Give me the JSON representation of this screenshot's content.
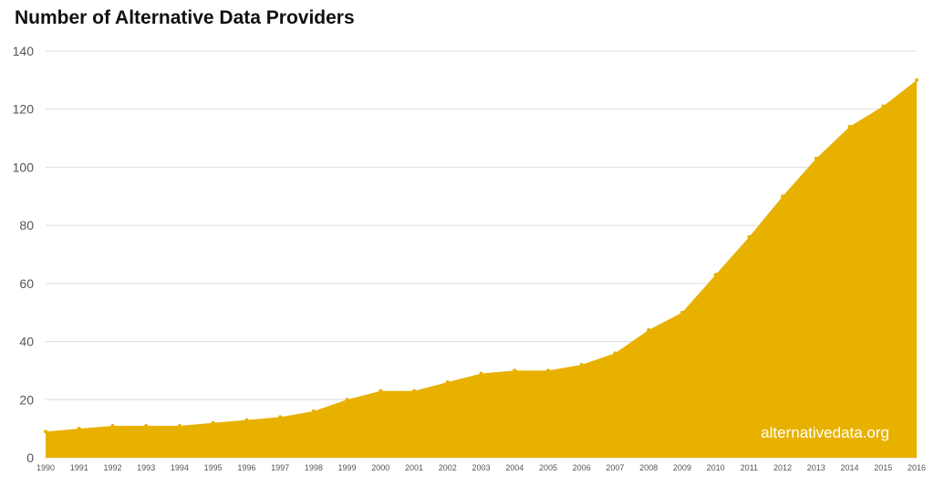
{
  "chart_data": {
    "type": "area",
    "title": "Number of Alternative Data Providers",
    "xlabel": "",
    "ylabel": "",
    "x": [
      1990,
      1991,
      1992,
      1993,
      1994,
      1995,
      1996,
      1997,
      1998,
      1999,
      2000,
      2001,
      2002,
      2003,
      2004,
      2005,
      2006,
      2007,
      2008,
      2009,
      2010,
      2011,
      2012,
      2013,
      2014,
      2015,
      2016
    ],
    "series": [
      {
        "name": "Alternative Data Providers",
        "values": [
          9,
          10,
          11,
          11,
          11,
          12,
          13,
          14,
          16,
          20,
          23,
          23,
          26,
          29,
          30,
          30,
          32,
          36,
          44,
          50,
          63,
          76,
          90,
          103,
          114,
          121,
          130
        ]
      }
    ],
    "x_ticks": [
      "1990",
      "1991",
      "1992",
      "1993",
      "1994",
      "1995",
      "1996",
      "1997",
      "1998",
      "1999",
      "2000",
      "2001",
      "2002",
      "2003",
      "2004",
      "2005",
      "2006",
      "2007",
      "2008",
      "2009",
      "2010",
      "2011",
      "2012",
      "2013",
      "2014",
      "2015",
      "2016"
    ],
    "y_ticks": [
      0,
      20,
      40,
      60,
      80,
      100,
      120,
      140
    ],
    "ylim": [
      0,
      140
    ],
    "xlim": [
      1990,
      2016
    ],
    "grid": true,
    "fill_color": "#E8B100",
    "grid_color": "#DDDDDD",
    "watermark": "alternativedata.org"
  }
}
